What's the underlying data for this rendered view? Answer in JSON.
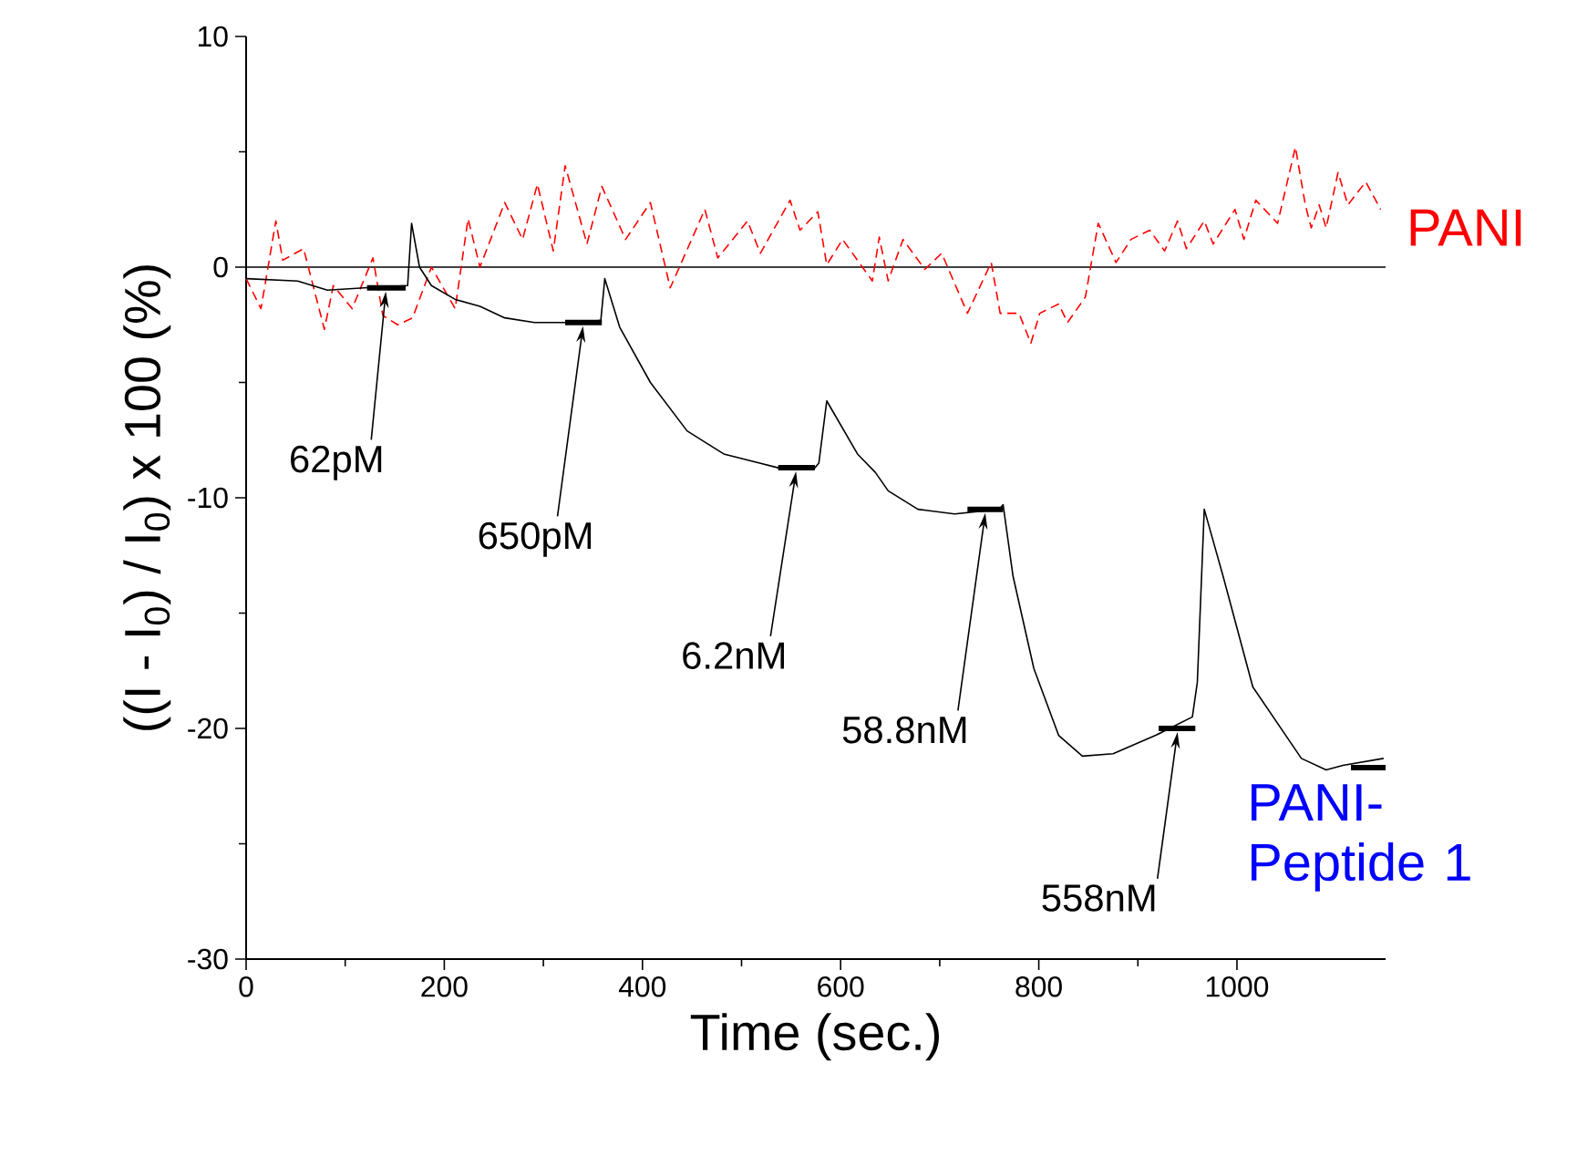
{
  "chart_data": {
    "type": "line",
    "xlabel": "Time (sec.)",
    "ylabel": "((I - I$_{0}$) / I$_{0}$) x 100 (%)",
    "xlim": [
      0,
      1150
    ],
    "ylim": [
      -30,
      10
    ],
    "xticks": [
      0,
      200,
      400,
      600,
      800,
      1000
    ],
    "yticks": [
      -30,
      -20,
      -10,
      0,
      10
    ],
    "grid": false,
    "legend": "right",
    "marker": "none",
    "ref_lines": [
      {
        "axis": "y",
        "value": 0,
        "color": "#000000"
      }
    ],
    "annotations": [
      {
        "text": "62pM",
        "x": 141,
        "y": -0.9
      },
      {
        "text": "650pM",
        "x": 340,
        "y": -2.4
      },
      {
        "text": "6.2nM",
        "x": 555,
        "y": -8.7
      },
      {
        "text": "58.8nM",
        "x": 746,
        "y": -10.5
      },
      {
        "text": "558nM",
        "x": 940,
        "y": -20.0
      }
    ],
    "series": [
      {
        "name": "PANI",
        "color": "#ff0000",
        "line_style": "dashed",
        "x": [
          0,
          15,
          30,
          37,
          58,
          79,
          88,
          107,
          128,
          138,
          153,
          168,
          187,
          211,
          224,
          236,
          261,
          279,
          294,
          310,
          322,
          344,
          359,
          383,
          408,
          428,
          463,
          476,
          506,
          519,
          549,
          559,
          577,
          586,
          602,
          632,
          639,
          648,
          663,
          685,
          702,
          728,
          752,
          761,
          780,
          792,
          801,
          820,
          829,
          847,
          860,
          878,
          893,
          912,
          927,
          940,
          949,
          967,
          976,
          998,
          1007,
          1019,
          1041,
          1059,
          1069,
          1075,
          1083,
          1090,
          1102,
          1112,
          1130,
          1145
        ],
        "values": [
          -0.5,
          -1.8,
          2.0,
          0.3,
          0.8,
          -2.7,
          -0.8,
          -1.8,
          0.4,
          -2.1,
          -2.5,
          -2.2,
          0.0,
          -1.8,
          2.1,
          0.0,
          2.8,
          1.2,
          3.6,
          0.7,
          4.4,
          1.0,
          3.5,
          1.2,
          2.8,
          -0.9,
          2.5,
          0.4,
          2.0,
          0.6,
          2.9,
          1.6,
          2.4,
          0.1,
          1.2,
          -0.6,
          1.3,
          -0.6,
          1.2,
          -0.1,
          0.6,
          -2.0,
          0.2,
          -2.0,
          -2.0,
          -3.3,
          -2.0,
          -1.6,
          -2.4,
          -1.3,
          1.9,
          0.2,
          1.2,
          1.6,
          0.7,
          2.0,
          0.8,
          2.0,
          1.0,
          2.5,
          1.2,
          2.9,
          1.9,
          5.2,
          2.7,
          1.7,
          2.7,
          1.7,
          4.1,
          2.7,
          3.7,
          2.5
        ]
      },
      {
        "name": "PANI-Peptide 1",
        "color": "#000000",
        "line_style": "solid",
        "x": [
          0,
          52,
          82,
          119,
          163,
          167,
          175,
          187,
          211,
          236,
          261,
          291,
          340,
          358,
          362,
          377,
          408,
          445,
          482,
          537,
          574,
          578,
          586,
          617,
          635,
          648,
          678,
          715,
          760,
          764,
          774,
          795,
          820,
          844,
          875,
          918,
          955,
          960,
          967,
          986,
          1016,
          1065,
          1090,
          1107,
          1148
        ],
        "values": [
          -0.5,
          -0.6,
          -1.0,
          -0.9,
          -0.8,
          1.9,
          0.0,
          -0.8,
          -1.4,
          -1.7,
          -2.2,
          -2.4,
          -2.4,
          -2.3,
          -0.5,
          -2.6,
          -5.0,
          -7.1,
          -8.1,
          -8.7,
          -8.7,
          -8.5,
          -5.8,
          -8.1,
          -8.9,
          -9.7,
          -10.5,
          -10.7,
          -10.5,
          -10.3,
          -13.4,
          -17.4,
          -20.3,
          -21.2,
          -21.1,
          -20.3,
          -19.5,
          -18.0,
          -10.5,
          -13.4,
          -18.2,
          -21.3,
          -21.8,
          -21.6,
          -21.3
        ]
      },
      {
        "color": "#000000",
        "line_style": "solid",
        "x": [
          122,
          161,
          null,
          322,
          359,
          null,
          537,
          574,
          null,
          728,
          764,
          null,
          921,
          958,
          null,
          1115,
          1150
        ],
        "values": [
          -0.9,
          -0.9,
          null,
          -2.4,
          -2.4,
          null,
          -8.7,
          -8.7,
          null,
          -10.5,
          -10.5,
          null,
          -20.0,
          -20.0,
          null,
          -21.7,
          -21.7
        ]
      }
    ]
  }
}
